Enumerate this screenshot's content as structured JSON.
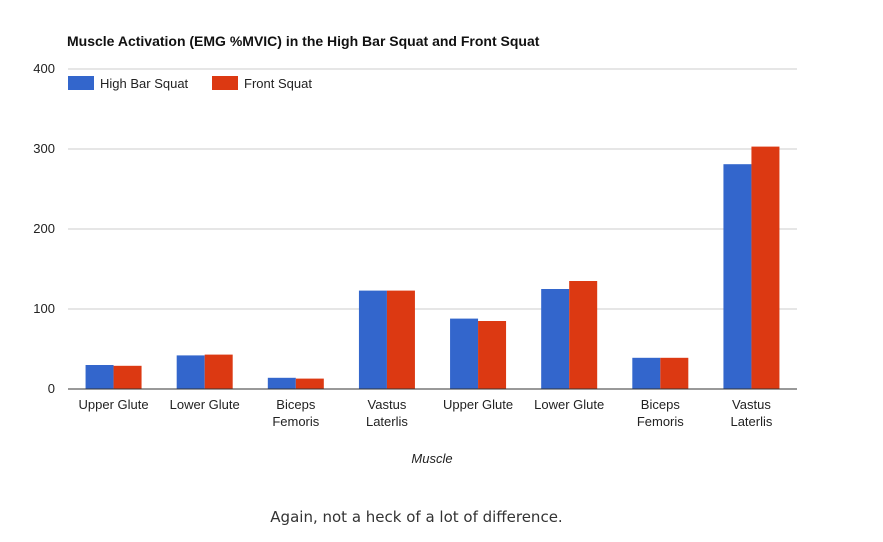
{
  "caption": "Again, not a heck of a lot of difference.",
  "colors": {
    "high_bar": "#3366cc",
    "front": "#dc3912",
    "grid": "#cccccc",
    "axis_text": "#222222"
  },
  "chart_data": {
    "type": "bar",
    "title": "Muscle Activation (EMG %MVIC) in the High Bar Squat and Front Squat",
    "xlabel": "Muscle",
    "ylabel": "",
    "ylim": [
      0,
      400
    ],
    "yticks": [
      "0",
      "100",
      "200",
      "300",
      "400"
    ],
    "grid": true,
    "legend_position": "top-left",
    "categories": [
      [
        "Upper Glute"
      ],
      [
        "Lower Glute"
      ],
      [
        "Biceps",
        "Femoris"
      ],
      [
        "Vastus",
        "Laterlis"
      ],
      [
        "Upper Glute"
      ],
      [
        "Lower Glute"
      ],
      [
        "Biceps",
        "Femoris"
      ],
      [
        "Vastus",
        "Laterlis"
      ]
    ],
    "series": [
      {
        "name": "High Bar Squat",
        "color": "#3366cc",
        "values": [
          30,
          42,
          14,
          123,
          88,
          125,
          39,
          281
        ]
      },
      {
        "name": "Front Squat",
        "color": "#dc3912",
        "values": [
          29,
          43,
          13,
          123,
          85,
          135,
          39,
          303
        ]
      }
    ]
  }
}
